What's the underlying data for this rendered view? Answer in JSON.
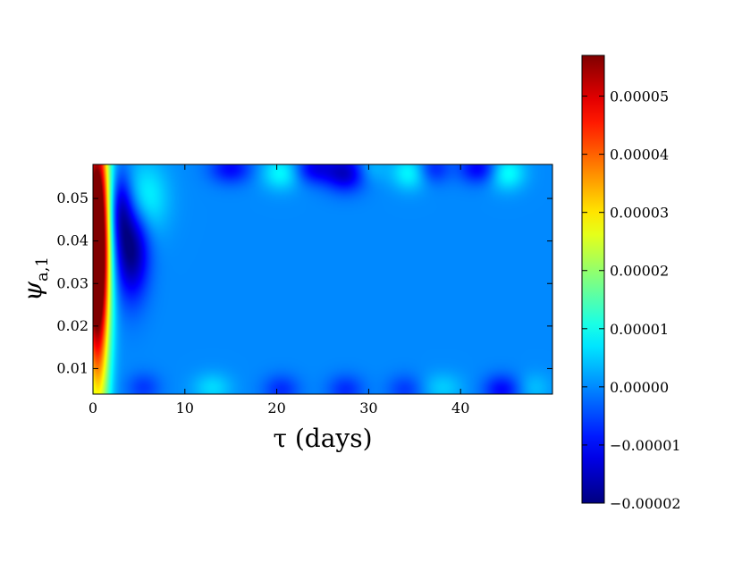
{
  "chart_data": {
    "type": "heatmap",
    "title": "",
    "xlabel": "τ (days)",
    "ylabel": "ψ",
    "ylabel_subscript": "a,1",
    "xlim": [
      0,
      50
    ],
    "ylim": [
      0.004,
      0.058
    ],
    "x_ticks": [
      0,
      10,
      20,
      30,
      40
    ],
    "x_tick_labels": [
      "0",
      "10",
      "20",
      "30",
      "40"
    ],
    "y_ticks": [
      0.01,
      0.02,
      0.03,
      0.04,
      0.05
    ],
    "y_tick_labels": [
      "0.01",
      "0.02",
      "0.03",
      "0.04",
      "0.05"
    ],
    "colorscale": "jet",
    "colorbar": {
      "range": [
        -2e-05,
        5.7e-05
      ],
      "ticks": [
        -2e-05,
        -1e-05,
        0.0,
        1e-05,
        2e-05,
        3e-05,
        4e-05,
        5e-05
      ],
      "tick_labels": [
        "−0.00002",
        "−0.00001",
        "0.00000",
        "0.00001",
        "0.00002",
        "0.00003",
        "0.00004",
        "0.00005"
      ],
      "placement": "right"
    },
    "z_baseline": 0.0,
    "features": [
      {
        "kind": "ridge",
        "tau_center": 0.3,
        "tau_width": 1.0,
        "psi_center": 0.04,
        "psi_width": 0.018,
        "value": 5.7e-05
      },
      {
        "kind": "edge",
        "tau_center": 0.6,
        "tau_width": 0.9,
        "psi_center": 0.03,
        "psi_width": 0.03,
        "value": 3e-05
      },
      {
        "kind": "trough",
        "tau_center": 4.2,
        "tau_width": 1.3,
        "psi_center": 0.038,
        "psi_width": 0.008,
        "value": -2e-05
      },
      {
        "kind": "trough",
        "tau_center": 3.0,
        "tau_width": 0.9,
        "psi_center": 0.048,
        "psi_width": 0.006,
        "value": -1.4e-05
      },
      {
        "kind": "band",
        "tau_center": 5.5,
        "tau_width": 1.8,
        "psi_center": 0.05,
        "psi_width": 0.006,
        "value": 1e-05
      },
      {
        "kind": "spot",
        "tau_center": 15.0,
        "tau_width": 1.6,
        "psi_center": 0.057,
        "psi_width": 0.0025,
        "value": -1e-05
      },
      {
        "kind": "spot",
        "tau_center": 20.5,
        "tau_width": 1.5,
        "psi_center": 0.056,
        "psi_width": 0.0028,
        "value": 9e-06
      },
      {
        "kind": "spot",
        "tau_center": 24.0,
        "tau_width": 1.5,
        "psi_center": 0.057,
        "psi_width": 0.0025,
        "value": -1.1e-05
      },
      {
        "kind": "spot",
        "tau_center": 27.5,
        "tau_width": 1.6,
        "psi_center": 0.056,
        "psi_width": 0.003,
        "value": -1.5e-05
      },
      {
        "kind": "spot",
        "tau_center": 30.0,
        "tau_width": 1.3,
        "psi_center": 0.057,
        "psi_width": 0.0025,
        "value": 5e-06
      },
      {
        "kind": "spot",
        "tau_center": 34.5,
        "tau_width": 1.4,
        "psi_center": 0.056,
        "psi_width": 0.0028,
        "value": 9e-06
      },
      {
        "kind": "spot",
        "tau_center": 37.0,
        "tau_width": 1.3,
        "psi_center": 0.057,
        "psi_width": 0.0025,
        "value": -8e-06
      },
      {
        "kind": "spot",
        "tau_center": 42.0,
        "tau_width": 1.5,
        "psi_center": 0.057,
        "psi_width": 0.0025,
        "value": -1.1e-05
      },
      {
        "kind": "spot",
        "tau_center": 45.0,
        "tau_width": 1.4,
        "psi_center": 0.056,
        "psi_width": 0.0028,
        "value": 1e-05
      },
      {
        "kind": "spot",
        "tau_center": 5.5,
        "tau_width": 1.3,
        "psi_center": 0.0055,
        "psi_width": 0.0025,
        "value": -6e-06
      },
      {
        "kind": "spot",
        "tau_center": 13.0,
        "tau_width": 1.5,
        "psi_center": 0.0055,
        "psi_width": 0.0025,
        "value": 6e-06
      },
      {
        "kind": "spot",
        "tau_center": 20.5,
        "tau_width": 1.4,
        "psi_center": 0.005,
        "psi_width": 0.0025,
        "value": -7e-06
      },
      {
        "kind": "spot",
        "tau_center": 27.5,
        "tau_width": 1.4,
        "psi_center": 0.005,
        "psi_width": 0.0025,
        "value": -7e-06
      },
      {
        "kind": "spot",
        "tau_center": 34.0,
        "tau_width": 1.4,
        "psi_center": 0.005,
        "psi_width": 0.0025,
        "value": -6e-06
      },
      {
        "kind": "spot",
        "tau_center": 38.0,
        "tau_width": 1.6,
        "psi_center": 0.0055,
        "psi_width": 0.0025,
        "value": 5e-06
      },
      {
        "kind": "spot",
        "tau_center": 44.5,
        "tau_width": 1.4,
        "psi_center": 0.005,
        "psi_width": 0.0025,
        "value": -1e-05
      },
      {
        "kind": "spot",
        "tau_center": 48.0,
        "tau_width": 1.3,
        "psi_center": 0.0055,
        "psi_width": 0.0025,
        "value": 4e-06
      }
    ]
  }
}
